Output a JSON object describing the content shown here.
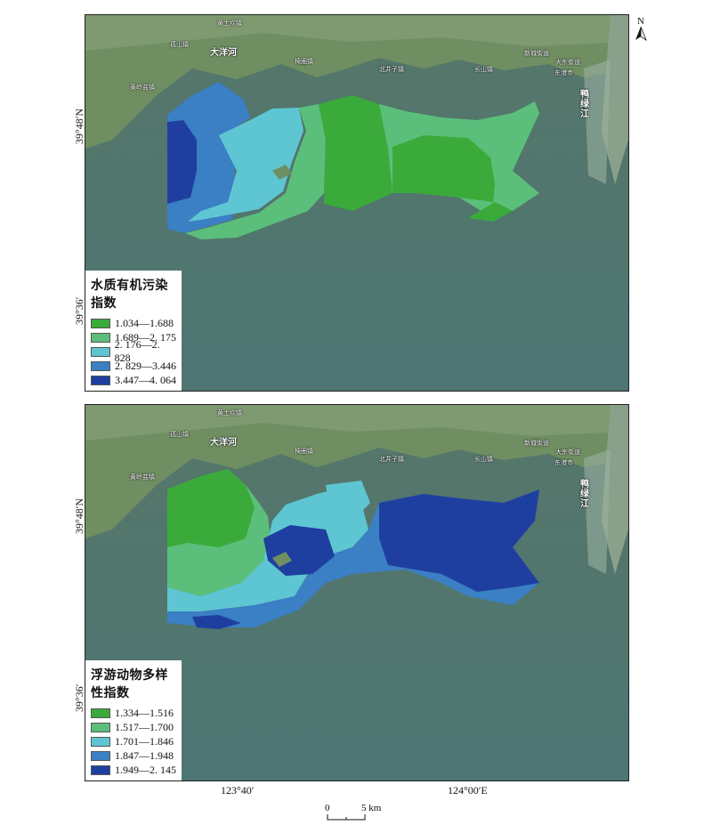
{
  "north_label": "N",
  "coordinates": {
    "lat_48": "39°48′N",
    "lat_36": "39°36′",
    "lon_40": "123°40′",
    "lon_00": "124°00′E"
  },
  "scalebar": {
    "zero": "0",
    "five": "5 km"
  },
  "places": {
    "huangtuokan": "黄土坎镇",
    "gushan": "孤山镇",
    "dayanghe": "大洋河",
    "xiuyan": "黄岭盐镇",
    "jiaying": "椅圈镇",
    "beijingzi": "北井子镇",
    "changshan": "长山镇",
    "xincheng": "新城街道",
    "dadong": "大东街道",
    "donggang": "东港市",
    "yalujiang": "鸭绿江"
  },
  "maps": [
    {
      "legend_title": "水质有机污染指数",
      "legend": [
        {
          "label": "1.034—1.688",
          "color": "#3aab3a"
        },
        {
          "label": "1.689—2. 175",
          "color": "#5bbf7b"
        },
        {
          "label": "2. 176—2. 828",
          "color": "#5ec6d2"
        },
        {
          "label": "2. 829—3.446",
          "color": "#3b7fc4"
        },
        {
          "label": "3.447—4. 064",
          "color": "#1f3fa0"
        }
      ]
    },
    {
      "legend_title": "浮游动物多样性指数",
      "legend": [
        {
          "label": "1.334—1.516",
          "color": "#3aab3a"
        },
        {
          "label": "1.517—1.700",
          "color": "#5bbf7b"
        },
        {
          "label": "1.701—1.846",
          "color": "#5ec6d2"
        },
        {
          "label": "1.847—1.948",
          "color": "#3b7fc4"
        },
        {
          "label": "1.949—2. 145",
          "color": "#1f3fa0"
        }
      ]
    }
  ]
}
